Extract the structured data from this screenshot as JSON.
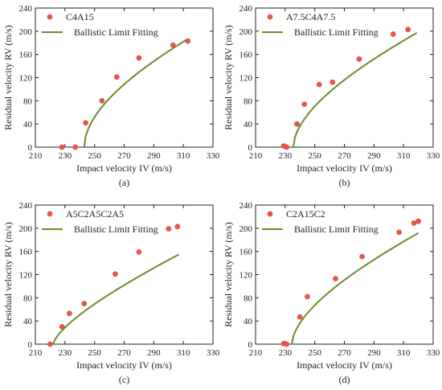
{
  "colors": {
    "point": "#e8544a",
    "fit": "#6e8b2a",
    "axis": "#222222"
  },
  "chart_data": [
    {
      "type": "scatter",
      "panel": "(a)",
      "xlabel": "Impact velocity IV (m/s)",
      "ylabel": "Residual velocity RV (m/s)",
      "xlim": [
        210,
        330
      ],
      "ylim": [
        0,
        240
      ],
      "xticks": [
        210,
        230,
        250,
        270,
        290,
        310,
        330
      ],
      "yticks": [
        0,
        40,
        80,
        120,
        160,
        200,
        240
      ],
      "legend": {
        "placement": "top-left"
      },
      "series": [
        {
          "name": "C4A15",
          "kind": "points",
          "x": [
            228,
            237,
            244,
            255,
            265,
            280,
            303,
            313
          ],
          "y": [
            0,
            0,
            42,
            80,
            121,
            154,
            176,
            183
          ]
        },
        {
          "name": "Ballistic Limit Fitting",
          "kind": "fit",
          "v_bl": 243,
          "a": 1.0,
          "p": 1.88,
          "x_end": 312
        }
      ]
    },
    {
      "type": "scatter",
      "panel": "(b)",
      "xlabel": "Impact velocity IV (m/s)",
      "ylabel": "Residual velocity RV (m/s)",
      "xlim": [
        210,
        330
      ],
      "ylim": [
        0,
        240
      ],
      "xticks": [
        210,
        230,
        250,
        270,
        290,
        310,
        330
      ],
      "yticks": [
        0,
        40,
        80,
        120,
        160,
        200,
        240
      ],
      "legend": {
        "placement": "top-left"
      },
      "series": [
        {
          "name": "A7.5C4A7.5",
          "kind": "points",
          "x": [
            229,
            231,
            238,
            243,
            253,
            262,
            280,
            303,
            313
          ],
          "y": [
            2,
            0,
            40,
            74,
            108,
            112,
            152,
            195,
            203
          ]
        },
        {
          "name": "Ballistic Limit Fitting",
          "kind": "fit",
          "v_bl": 235.5,
          "a": 1.0,
          "p": 1.8,
          "x_end": 319
        }
      ]
    },
    {
      "type": "scatter",
      "panel": "(c)",
      "xlabel": "Impact velocity IV (m/s)",
      "ylabel": "Residual velocity RV (m/s)",
      "xlim": [
        210,
        330
      ],
      "ylim": [
        0,
        240
      ],
      "xticks": [
        210,
        230,
        250,
        270,
        290,
        310,
        330
      ],
      "yticks": [
        0,
        40,
        80,
        120,
        160,
        200,
        240
      ],
      "legend": {
        "placement": "top-left"
      },
      "series": [
        {
          "name": "A5C2A5C2A5",
          "kind": "points",
          "x": [
            220,
            228,
            233,
            243,
            264,
            280,
            300,
            306
          ],
          "y": [
            0,
            30,
            53,
            70,
            121,
            159,
            199,
            203
          ]
        },
        {
          "name": "Ballistic Limit Fitting",
          "kind": "fit",
          "v_bl": 222,
          "a": 1.0,
          "p": 1.44,
          "x_end": 307
        }
      ]
    },
    {
      "type": "scatter",
      "panel": "(d)",
      "xlabel": "Impact velocity IV (m/s)",
      "ylabel": "Residual velocity RV (m/s)",
      "xlim": [
        210,
        330
      ],
      "ylim": [
        0,
        240
      ],
      "xticks": [
        210,
        230,
        250,
        270,
        290,
        310,
        330
      ],
      "yticks": [
        0,
        40,
        80,
        120,
        160,
        200,
        240
      ],
      "legend": {
        "placement": "top-left"
      },
      "series": [
        {
          "name": "C2A15C2",
          "kind": "points",
          "x": [
            229,
            231,
            240,
            245,
            264,
            282,
            307,
            317,
            320
          ],
          "y": [
            1,
            0,
            47,
            82,
            113,
            151,
            193,
            209,
            212
          ]
        },
        {
          "name": "Ballistic Limit Fitting",
          "kind": "fit",
          "v_bl": 234.5,
          "a": 1.0,
          "p": 1.72,
          "x_end": 320
        }
      ]
    }
  ]
}
